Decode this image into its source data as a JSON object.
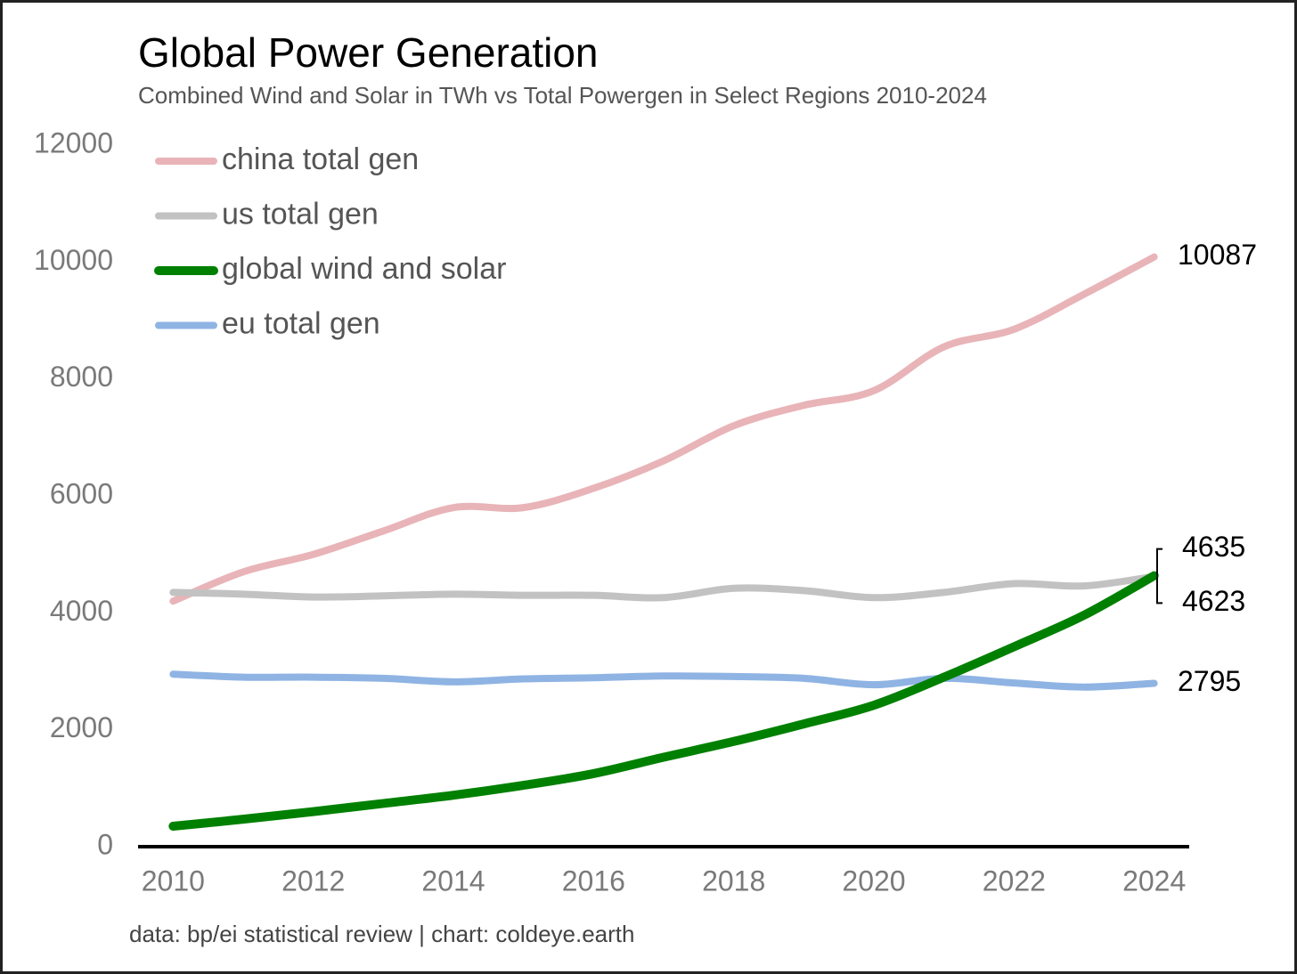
{
  "chart_data": {
    "type": "line",
    "title": "Global Power Generation",
    "subtitle": "Combined Wind and Solar in TWh vs Total Powergen in Select Regions 2010-2024",
    "source": "data: bp/ei statistical review | chart: coldeye.earth",
    "x": [
      2010,
      2011,
      2012,
      2013,
      2014,
      2015,
      2016,
      2017,
      2018,
      2019,
      2020,
      2021,
      2022,
      2023,
      2024
    ],
    "series": [
      {
        "name": "china total gen",
        "color": "#e8b4b8",
        "values": [
          4200,
          4700,
          5000,
          5400,
          5800,
          5800,
          6130,
          6600,
          7200,
          7550,
          7800,
          8550,
          8850,
          9450,
          10087
        ]
      },
      {
        "name": "us total gen",
        "color": "#c2c2c2",
        "values": [
          4350,
          4320,
          4270,
          4290,
          4320,
          4300,
          4300,
          4260,
          4420,
          4380,
          4260,
          4350,
          4500,
          4460,
          4623
        ]
      },
      {
        "name": "global wind and solar",
        "color": "#008000",
        "values": [
          350,
          470,
          600,
          740,
          880,
          1050,
          1250,
          1530,
          1800,
          2100,
          2420,
          2900,
          3420,
          3960,
          4635
        ]
      },
      {
        "name": "eu total gen",
        "color": "#8fb4e3",
        "values": [
          2950,
          2900,
          2900,
          2880,
          2820,
          2870,
          2890,
          2920,
          2910,
          2880,
          2770,
          2880,
          2800,
          2730,
          2795
        ]
      }
    ],
    "xlim": [
      2009.5,
      2024.5
    ],
    "xticks": [
      2010,
      2012,
      2014,
      2016,
      2018,
      2020,
      2022,
      2024
    ],
    "ylim": [
      0,
      12000
    ],
    "yticks": [
      0,
      2000,
      4000,
      6000,
      8000,
      10000,
      12000
    ],
    "legend": "upper left"
  }
}
